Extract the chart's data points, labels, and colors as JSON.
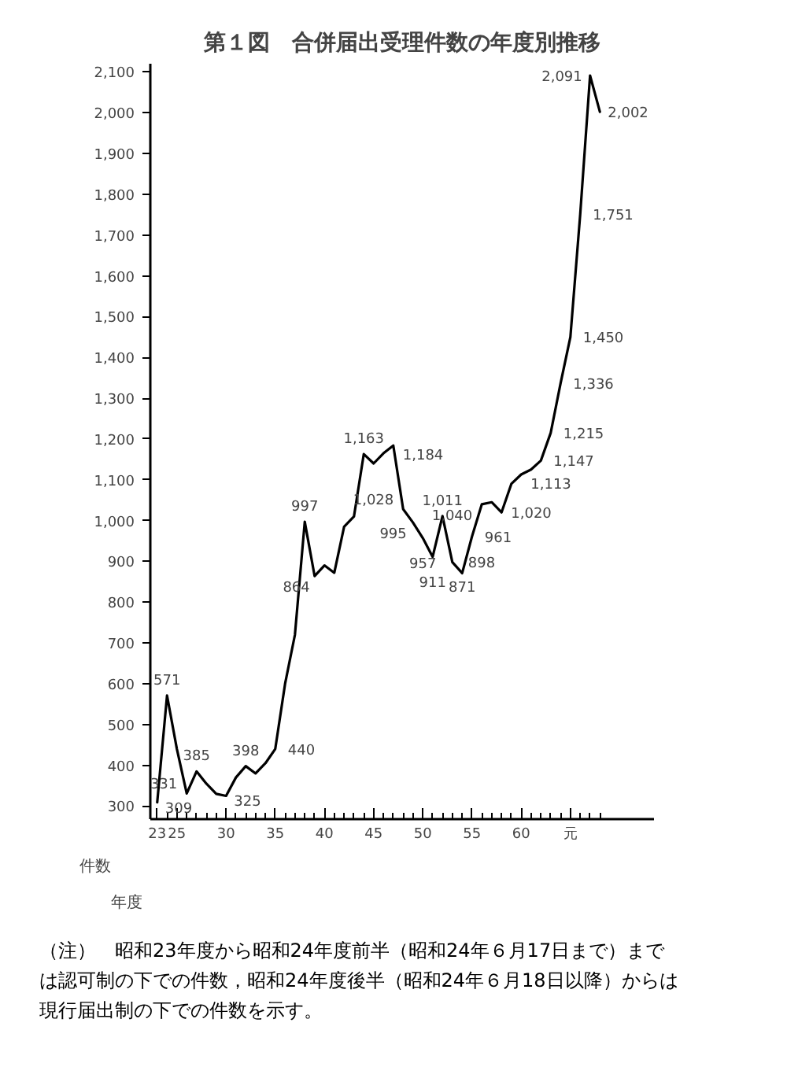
{
  "chart_data": {
    "type": "line",
    "title": "第１図　合併届出受理件数の年度別推移",
    "ylabel": "件数",
    "xlabel": "年度",
    "x": [
      23,
      24,
      25,
      26,
      27,
      28,
      29,
      30,
      31,
      32,
      33,
      34,
      35,
      36,
      37,
      38,
      39,
      40,
      41,
      42,
      43,
      44,
      45,
      46,
      47,
      48,
      49,
      50,
      51,
      52,
      53,
      54,
      55,
      56,
      57,
      58,
      59,
      60,
      61,
      62,
      63,
      64,
      65,
      66,
      67,
      68
    ],
    "series": [
      {
        "color": "#000000",
        "values": [
          309,
          571,
          440,
          331,
          385,
          355,
          330,
          325,
          370,
          398,
          380,
          405,
          440,
          600,
          720,
          997,
          864,
          890,
          872,
          985,
          1010,
          1163,
          1140,
          1165,
          1184,
          1028,
          995,
          957,
          911,
          1011,
          898,
          871,
          961,
          1040,
          1045,
          1020,
          1090,
          1113,
          1125,
          1147,
          1215,
          1336,
          1450,
          1751,
          2091,
          2002
        ],
        "value_labels": [
          "309",
          "571",
          null,
          "331",
          "385",
          null,
          null,
          "325",
          null,
          "398",
          null,
          null,
          "440",
          null,
          null,
          "997",
          "864",
          null,
          null,
          null,
          null,
          "1,163",
          null,
          null,
          "1,184",
          "1,028",
          "995",
          "957",
          "911",
          "1,011",
          "898",
          "871",
          "961",
          "1,040",
          null,
          "1,020",
          null,
          "1,113",
          null,
          "1,147",
          "1,215",
          "1,336",
          "1,450",
          "1,751",
          "2,091",
          "2,002"
        ]
      }
    ],
    "xlim": [
      22.3,
      73.5
    ],
    "ylim": [
      268,
      2120
    ],
    "xticks": [
      23,
      {
        "value": 24,
        "label": null
      },
      25,
      {
        "value": 26,
        "label": null
      },
      {
        "value": 27,
        "label": null
      },
      {
        "value": 28,
        "label": null
      },
      {
        "value": 29,
        "label": null
      },
      30,
      {
        "value": 31,
        "label": null
      },
      {
        "value": 32,
        "label": null
      },
      {
        "value": 33,
        "label": null
      },
      {
        "value": 34,
        "label": null
      },
      35,
      {
        "value": 36,
        "label": null
      },
      {
        "value": 37,
        "label": null
      },
      {
        "value": 38,
        "label": null
      },
      {
        "value": 39,
        "label": null
      },
      40,
      {
        "value": 41,
        "label": null
      },
      {
        "value": 42,
        "label": null
      },
      {
        "value": 43,
        "label": null
      },
      {
        "value": 44,
        "label": null
      },
      45,
      {
        "value": 46,
        "label": null
      },
      {
        "value": 47,
        "label": null
      },
      {
        "value": 48,
        "label": null
      },
      {
        "value": 49,
        "label": null
      },
      50,
      {
        "value": 51,
        "label": null
      },
      {
        "value": 52,
        "label": null
      },
      {
        "value": 53,
        "label": null
      },
      {
        "value": 54,
        "label": null
      },
      55,
      {
        "value": 56,
        "label": null
      },
      {
        "value": 57,
        "label": null
      },
      {
        "value": 58,
        "label": null
      },
      {
        "value": 59,
        "label": null
      },
      60,
      {
        "value": 61,
        "label": null
      },
      {
        "value": 62,
        "label": null
      },
      {
        "value": 63,
        "label": null
      },
      {
        "value": 64,
        "label": null
      },
      {
        "value": 65,
        "label": "元"
      },
      {
        "value": 66,
        "label": null
      },
      {
        "value": 67,
        "label": null
      },
      {
        "value": 68,
        "label": null
      }
    ],
    "yticks": [
      {
        "value": 300,
        "label": "300"
      },
      {
        "value": 400,
        "label": "400"
      },
      {
        "value": 500,
        "label": "500"
      },
      {
        "value": 600,
        "label": "600"
      },
      {
        "value": 700,
        "label": "700"
      },
      {
        "value": 800,
        "label": "800"
      },
      {
        "value": 900,
        "label": "900"
      },
      {
        "value": 1000,
        "label": "1,000"
      },
      {
        "value": 1100,
        "label": "1,100"
      },
      {
        "value": 1200,
        "label": "1,200"
      },
      {
        "value": 1300,
        "label": "1,300"
      },
      {
        "value": 1400,
        "label": "1,400"
      },
      {
        "value": 1500,
        "label": "1,500"
      },
      {
        "value": 1600,
        "label": "1,600"
      },
      {
        "value": 1700,
        "label": "1,700"
      },
      {
        "value": 1800,
        "label": "1,800"
      },
      {
        "value": 1900,
        "label": "1,900"
      },
      {
        "value": 2000,
        "label": "2,000"
      },
      {
        "value": 2100,
        "label": "2,100"
      }
    ],
    "grid": false,
    "marker": "none",
    "line_style": "solid",
    "annotations": [
      "（注）　昭和23年度から昭和24年度前半（昭和24年６月17日まで）までは認可制の下での件数，昭和24年度後半（昭和24年６月18日以降）からは現行届出制の下での件数を示す。"
    ]
  }
}
